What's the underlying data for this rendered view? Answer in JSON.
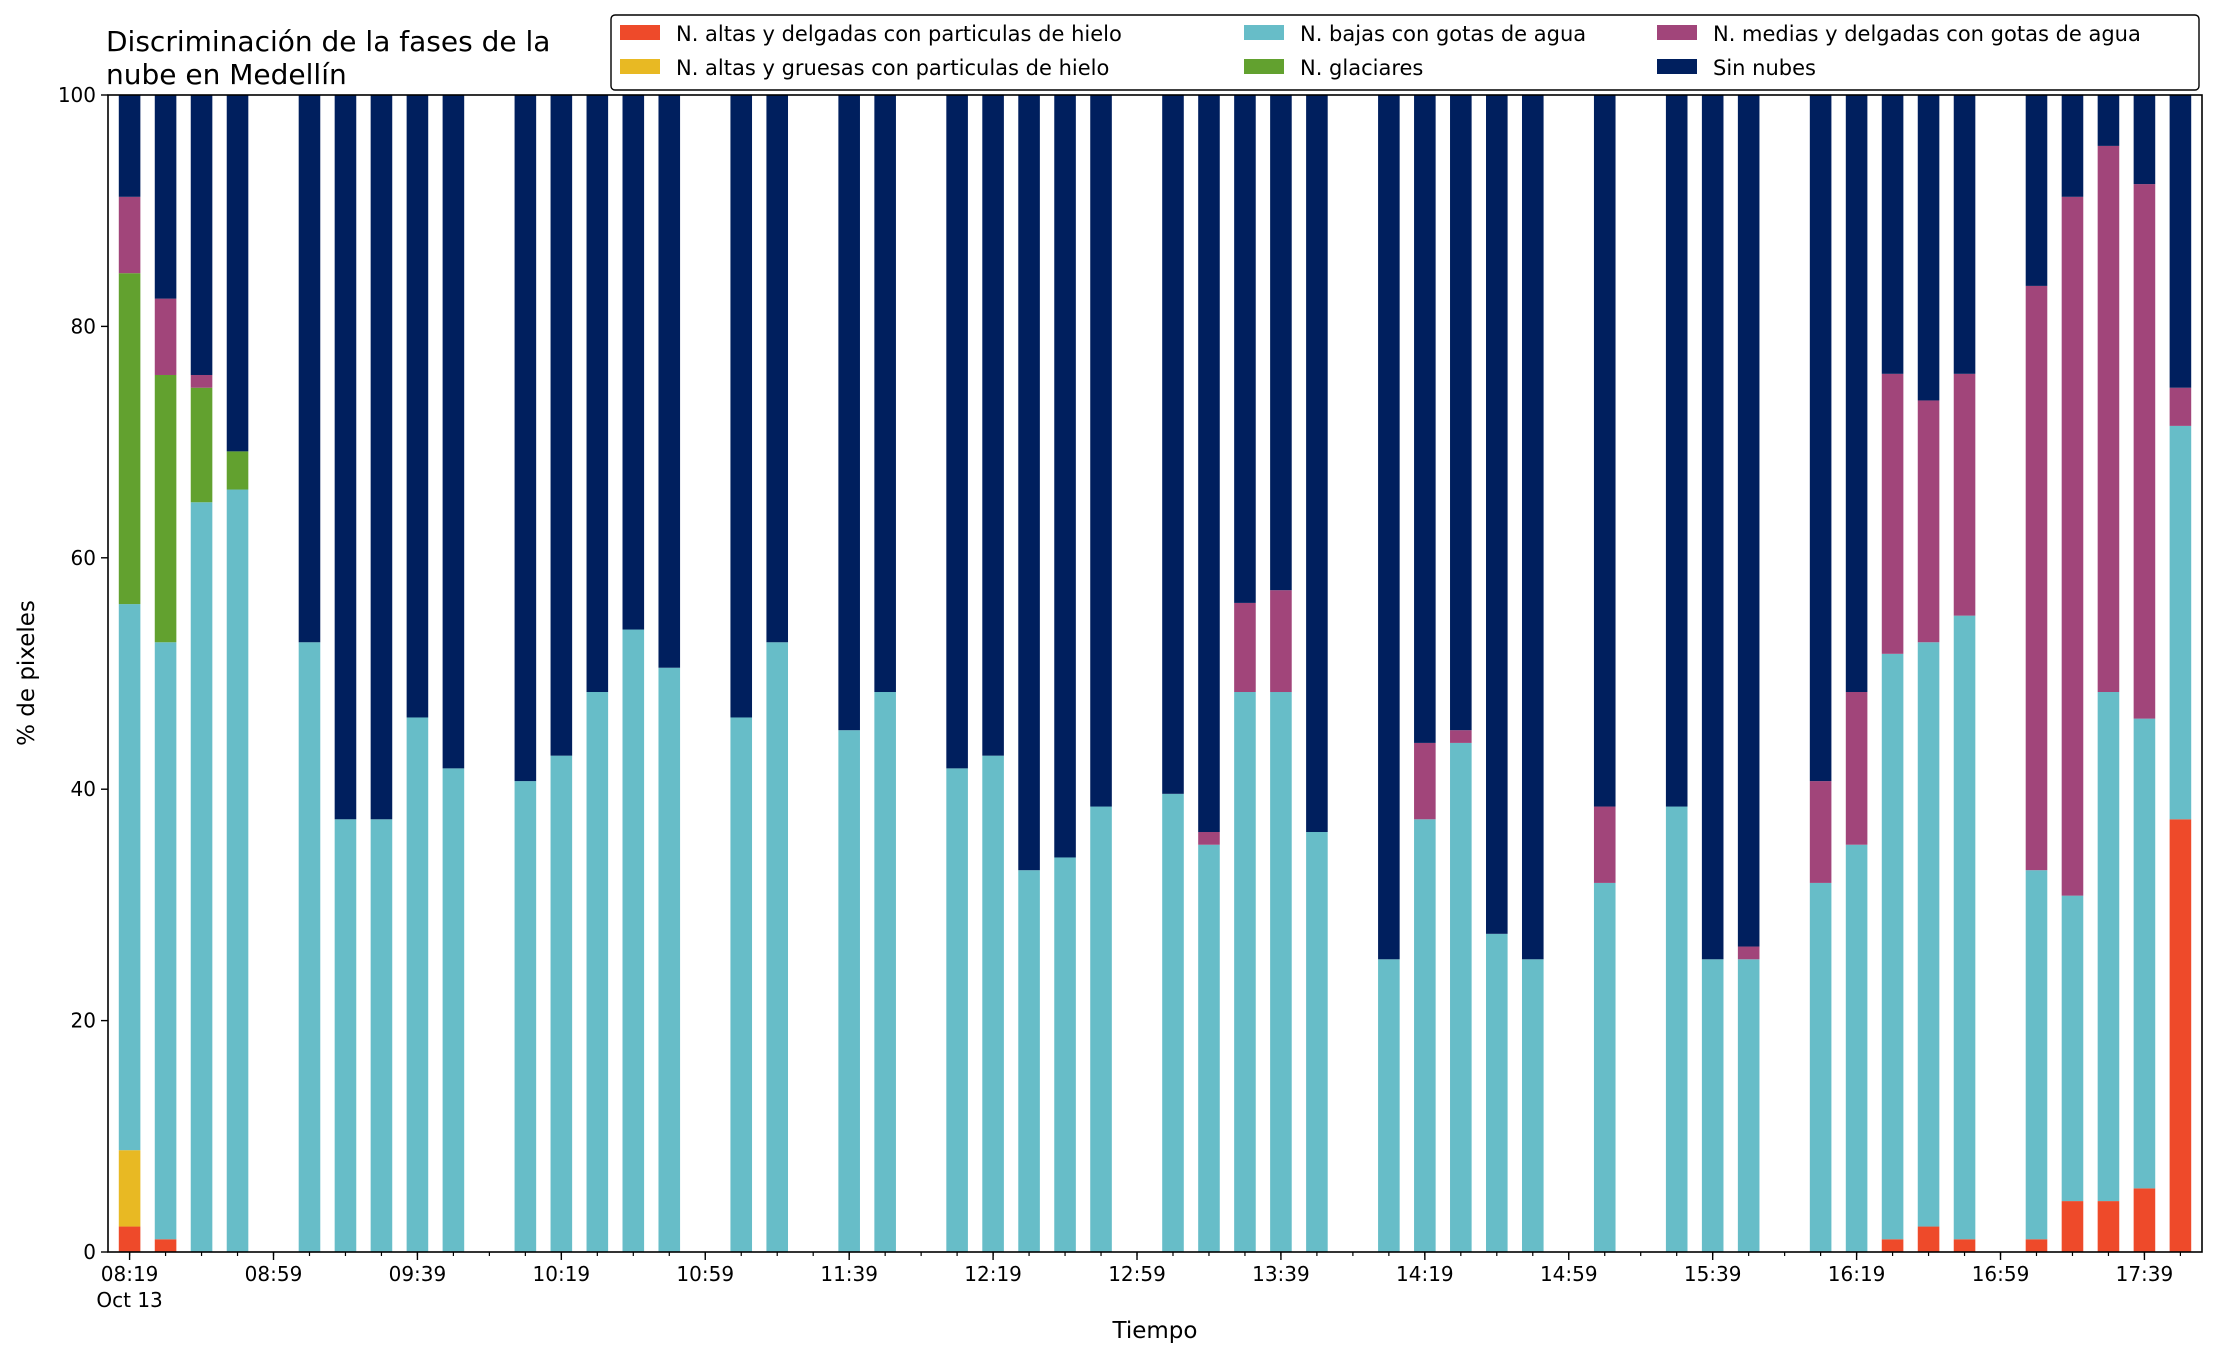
{
  "chart_data": {
    "type": "bar",
    "stacked": true,
    "title_lines": [
      "Discriminación de la fases de la",
      "nube en Medellín"
    ],
    "xlabel": "Tiempo",
    "ylabel": "% de pixeles",
    "ylim": [
      0,
      100
    ],
    "yticks": [
      0,
      20,
      40,
      60,
      80,
      100
    ],
    "xlim": [
      "08:13",
      "17:55"
    ],
    "bar_width_minutes": 6,
    "xticks_major": [
      {
        "time": "08:19",
        "label": "08:19",
        "sublabel": "Oct 13"
      },
      {
        "time": "08:59",
        "label": "08:59"
      },
      {
        "time": "09:39",
        "label": "09:39"
      },
      {
        "time": "10:19",
        "label": "10:19"
      },
      {
        "time": "10:59",
        "label": "10:59"
      },
      {
        "time": "11:39",
        "label": "11:39"
      },
      {
        "time": "12:19",
        "label": "12:19"
      },
      {
        "time": "12:59",
        "label": "12:59"
      },
      {
        "time": "13:39",
        "label": "13:39"
      },
      {
        "time": "14:19",
        "label": "14:19"
      },
      {
        "time": "14:59",
        "label": "14:59"
      },
      {
        "time": "15:39",
        "label": "15:39"
      },
      {
        "time": "16:19",
        "label": "16:19"
      },
      {
        "time": "16:59",
        "label": "16:59"
      },
      {
        "time": "17:39",
        "label": "17:39"
      }
    ],
    "minor_tick_interval_minutes": 10,
    "grid": false,
    "legend_placement": "top-right",
    "legend": [
      {
        "name": "N. altas y delgadas con particulas de hielo",
        "color": "#ee4a2a"
      },
      {
        "name": "N. altas y gruesas con particulas de hielo",
        "color": "#e8b923"
      },
      {
        "name": "N. bajas con gotas de agua",
        "color": "#67bdc8"
      },
      {
        "name": "N. glaciares",
        "color": "#62a12f"
      },
      {
        "name": "N. medias y delgadas con gotas de agua",
        "color": "#a1457a"
      },
      {
        "name": "Sin nubes",
        "color": "#001f5e"
      }
    ],
    "stack_order": [
      0,
      1,
      2,
      3,
      4,
      5
    ],
    "bars": [
      {
        "time": "08:19",
        "values": [
          2.2,
          6.6,
          47.2,
          28.6,
          6.6,
          8.8
        ]
      },
      {
        "time": "08:29",
        "values": [
          1.1,
          0,
          51.6,
          23.1,
          6.6,
          17.6
        ]
      },
      {
        "time": "08:39",
        "values": [
          0,
          0,
          64.8,
          9.9,
          1.1,
          24.2
        ]
      },
      {
        "time": "08:49",
        "values": [
          0,
          0,
          65.9,
          3.3,
          0,
          30.8
        ]
      },
      {
        "time": "09:09",
        "values": [
          0,
          0,
          52.7,
          0,
          0,
          47.3
        ]
      },
      {
        "time": "09:19",
        "values": [
          0,
          0,
          37.4,
          0,
          0,
          62.6
        ]
      },
      {
        "time": "09:29",
        "values": [
          0,
          0,
          37.4,
          0,
          0,
          62.6
        ]
      },
      {
        "time": "09:39",
        "values": [
          0,
          0,
          46.2,
          0,
          0,
          53.8
        ]
      },
      {
        "time": "09:49",
        "values": [
          0,
          0,
          41.8,
          0,
          0,
          58.2
        ]
      },
      {
        "time": "10:09",
        "values": [
          0,
          0,
          40.7,
          0,
          0,
          59.3
        ]
      },
      {
        "time": "10:19",
        "values": [
          0,
          0,
          42.9,
          0,
          0,
          57.1
        ]
      },
      {
        "time": "10:29",
        "values": [
          0,
          0,
          48.4,
          0,
          0,
          51.6
        ]
      },
      {
        "time": "10:39",
        "values": [
          0,
          0,
          53.8,
          0,
          0,
          46.2
        ]
      },
      {
        "time": "10:49",
        "values": [
          0,
          0,
          50.5,
          0,
          0,
          49.5
        ]
      },
      {
        "time": "11:09",
        "values": [
          0,
          0,
          46.2,
          0,
          0,
          53.8
        ]
      },
      {
        "time": "11:19",
        "values": [
          0,
          0,
          52.7,
          0,
          0,
          47.3
        ]
      },
      {
        "time": "11:39",
        "values": [
          0,
          0,
          45.1,
          0,
          0,
          54.9
        ]
      },
      {
        "time": "11:49",
        "values": [
          0,
          0,
          48.4,
          0,
          0,
          51.6
        ]
      },
      {
        "time": "12:09",
        "values": [
          0,
          0,
          41.8,
          0,
          0,
          58.2
        ]
      },
      {
        "time": "12:19",
        "values": [
          0,
          0,
          42.9,
          0,
          0,
          57.1
        ]
      },
      {
        "time": "12:29",
        "values": [
          0,
          0,
          33.0,
          0,
          0,
          67.0
        ]
      },
      {
        "time": "12:39",
        "values": [
          0,
          0,
          34.1,
          0,
          0,
          65.9
        ]
      },
      {
        "time": "12:49",
        "values": [
          0,
          0,
          38.5,
          0,
          0,
          61.5
        ]
      },
      {
        "time": "13:09",
        "values": [
          0,
          0,
          39.6,
          0,
          0,
          60.4
        ]
      },
      {
        "time": "13:19",
        "values": [
          0,
          0,
          35.2,
          0,
          1.1,
          63.7
        ]
      },
      {
        "time": "13:29",
        "values": [
          0,
          0,
          48.4,
          0,
          7.7,
          43.9
        ]
      },
      {
        "time": "13:39",
        "values": [
          0,
          0,
          48.4,
          0,
          8.8,
          42.8
        ]
      },
      {
        "time": "13:49",
        "values": [
          0,
          0,
          36.3,
          0,
          0,
          63.7
        ]
      },
      {
        "time": "14:09",
        "values": [
          0,
          0,
          25.3,
          0,
          0,
          74.7
        ]
      },
      {
        "time": "14:19",
        "values": [
          0,
          0,
          37.4,
          0,
          6.6,
          56.0
        ]
      },
      {
        "time": "14:29",
        "values": [
          0,
          0,
          44.0,
          0,
          1.1,
          54.9
        ]
      },
      {
        "time": "14:39",
        "values": [
          0,
          0,
          27.5,
          0,
          0,
          72.5
        ]
      },
      {
        "time": "14:49",
        "values": [
          0,
          0,
          25.3,
          0,
          0,
          74.7
        ]
      },
      {
        "time": "15:09",
        "values": [
          0,
          0,
          31.9,
          0,
          6.6,
          61.5
        ]
      },
      {
        "time": "15:29",
        "values": [
          0,
          0,
          38.5,
          0,
          0,
          61.5
        ]
      },
      {
        "time": "15:39",
        "values": [
          0,
          0,
          25.3,
          0,
          0,
          74.7
        ]
      },
      {
        "time": "15:49",
        "values": [
          0,
          0,
          25.3,
          0,
          1.1,
          73.6
        ]
      },
      {
        "time": "16:09",
        "values": [
          0,
          0,
          31.9,
          0,
          8.8,
          59.3
        ]
      },
      {
        "time": "16:19",
        "values": [
          0,
          0,
          35.2,
          0,
          13.2,
          51.6
        ]
      },
      {
        "time": "16:29",
        "values": [
          1.1,
          0,
          50.6,
          0,
          24.2,
          24.1
        ]
      },
      {
        "time": "16:39",
        "values": [
          2.2,
          0,
          50.5,
          0,
          20.9,
          26.4
        ]
      },
      {
        "time": "16:49",
        "values": [
          1.1,
          0,
          53.9,
          0,
          20.9,
          24.1
        ]
      },
      {
        "time": "17:09",
        "values": [
          1.1,
          0,
          31.9,
          0,
          50.5,
          16.5
        ]
      },
      {
        "time": "17:19",
        "values": [
          4.4,
          0,
          26.4,
          0,
          60.4,
          8.8
        ]
      },
      {
        "time": "17:29",
        "values": [
          4.4,
          0,
          44.0,
          0,
          47.2,
          4.4
        ]
      },
      {
        "time": "17:39",
        "values": [
          5.5,
          0,
          40.6,
          0,
          46.2,
          7.7
        ]
      },
      {
        "time": "17:49",
        "values": [
          37.4,
          0,
          34.0,
          0,
          3.3,
          25.3
        ]
      }
    ]
  }
}
